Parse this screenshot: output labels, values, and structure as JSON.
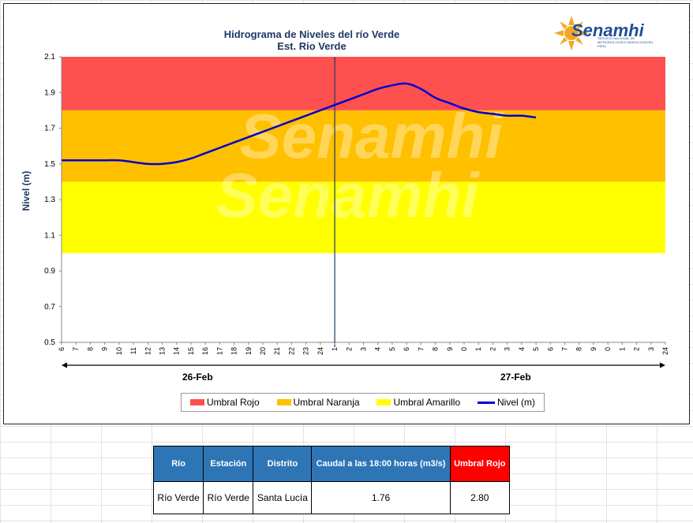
{
  "chart_data": {
    "type": "line",
    "title": "Hidrograma de Niveles del río Verde",
    "subtitle": "Est. Rio Verde",
    "ylabel": "Nivel  (m)",
    "ylim": [
      0.5,
      2.1
    ],
    "yticks": [
      "0.5",
      "0.7",
      "0.9",
      "1.1",
      "1.3",
      "1.5",
      "1.7",
      "1.9",
      "2.1"
    ],
    "xticks": [
      "6",
      "7",
      "8",
      "9",
      "10",
      "11",
      "12",
      "13",
      "14",
      "15",
      "16",
      "17",
      "18",
      "19",
      "20",
      "21",
      "22",
      "23",
      "24",
      "1",
      "2",
      "3",
      "4",
      "5",
      "6",
      "7",
      "8",
      "9",
      "0",
      "1",
      "2",
      "3",
      "4",
      "5",
      "6",
      "7",
      "8",
      "9",
      "0",
      "1",
      "2",
      "3",
      "24"
    ],
    "date_labels": [
      "26-Feb",
      "27-Feb"
    ],
    "thresholds": [
      {
        "name": "Umbral Amarillo",
        "from": 1.0,
        "to": 1.4,
        "color": "#ffff00"
      },
      {
        "name": "Umbral Naranja",
        "from": 1.4,
        "to": 1.8,
        "color": "#ffc000"
      },
      {
        "name": "Umbral Rojo",
        "from": 1.8,
        "to": 2.1,
        "color": "#ff5050"
      }
    ],
    "series": [
      {
        "name": "Nivel  (m)",
        "color": "#0000cc",
        "values": [
          1.52,
          1.52,
          1.52,
          1.52,
          1.52,
          1.51,
          1.5,
          1.5,
          1.51,
          1.53,
          1.56,
          1.59,
          1.62,
          1.65,
          1.68,
          1.71,
          1.74,
          1.77,
          1.8,
          1.83,
          1.86,
          1.89,
          1.92,
          1.94,
          1.95,
          1.92,
          1.87,
          1.84,
          1.81,
          1.79,
          1.78,
          1.77,
          1.77,
          1.76
        ]
      }
    ],
    "legend": [
      "Umbral Rojo",
      "Umbral Naranja",
      "Umbral Amarillo",
      "Nivel  (m)"
    ],
    "legend_position": "bottom"
  },
  "logo": {
    "name": "Senamhi",
    "subtitle": "SERVICIO NACIONAL DE METEOROLOGÍA E HIDROLOGÍA DEL PERÚ"
  },
  "watermark": "Senamhi",
  "table": {
    "headers": [
      "Río",
      "Estación",
      "Distrito",
      "Caudal a las 18:00 horas (m3/s)",
      "Umbral Rojo"
    ],
    "row": [
      "Río Verde",
      "Río Verde",
      "Santa Lucía",
      "1.76",
      "2.80"
    ]
  }
}
